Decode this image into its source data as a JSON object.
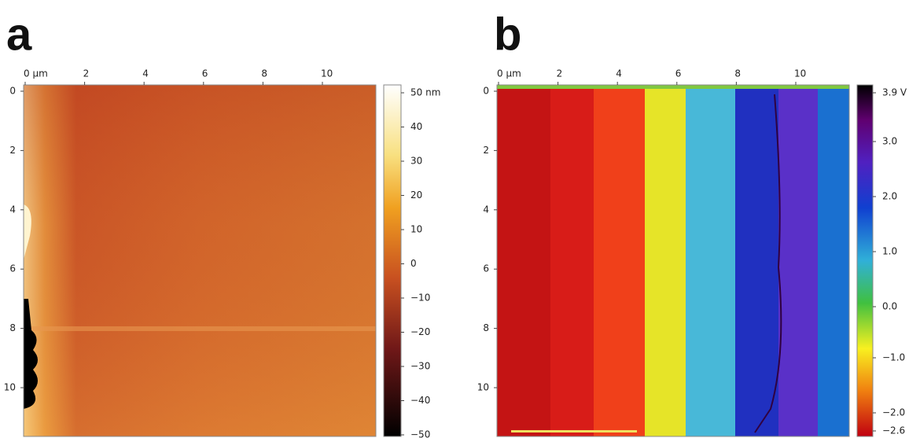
{
  "panels": [
    {
      "label": "a",
      "x_ticks": [
        "0 µm",
        "2",
        "4",
        "6",
        "8",
        "10"
      ],
      "y_ticks": [
        "0",
        "2",
        "4",
        "6",
        "8",
        "10"
      ],
      "colorbar_ticks": [
        "50 nm",
        "40",
        "30",
        "20",
        "10",
        "0",
        "−10",
        "−20",
        "−30",
        "−40",
        "−50"
      ]
    },
    {
      "label": "b",
      "x_ticks": [
        "0 µm",
        "2",
        "4",
        "6",
        "8",
        "10"
      ],
      "y_ticks": [
        "0",
        "2",
        "4",
        "6",
        "8",
        "10"
      ],
      "colorbar_ticks": [
        "3.9 V",
        "3.0",
        "2.0",
        "1.0",
        "0.0",
        "−1.0",
        "−2.0",
        "−2.6"
      ]
    }
  ]
}
